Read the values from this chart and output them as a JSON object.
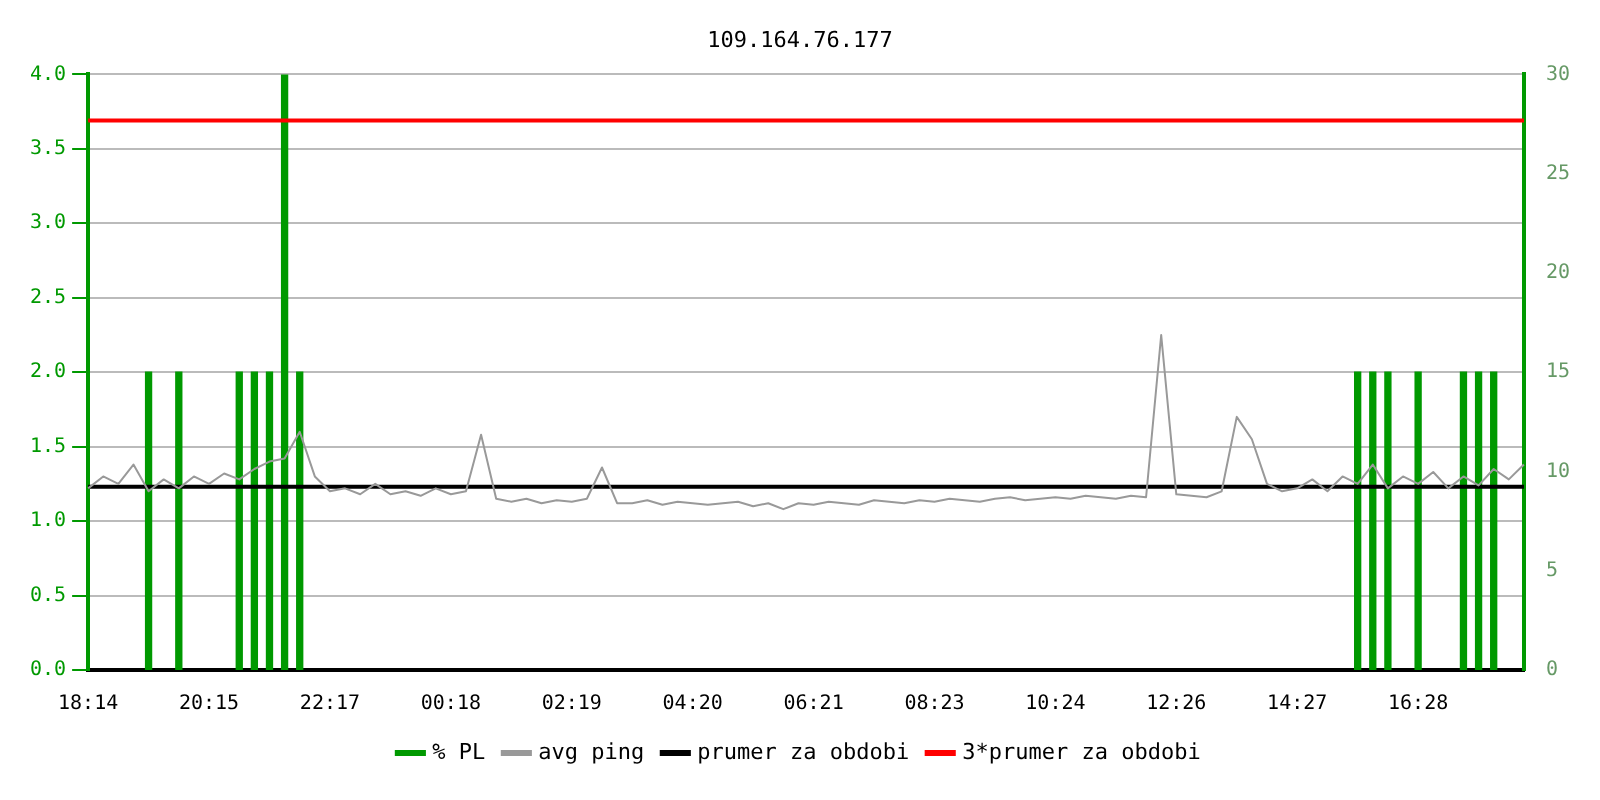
{
  "chart_data": {
    "type": "line",
    "title": "109.164.76.177",
    "categories": [
      "18:14",
      null,
      null,
      null,
      null,
      null,
      null,
      null,
      "20:15",
      null,
      null,
      null,
      null,
      null,
      null,
      null,
      "22:17",
      null,
      null,
      null,
      null,
      null,
      null,
      null,
      "00:18",
      null,
      null,
      null,
      null,
      null,
      null,
      null,
      "02:19",
      null,
      null,
      null,
      null,
      null,
      null,
      null,
      "04:20",
      null,
      null,
      null,
      null,
      null,
      null,
      null,
      "06:21",
      null,
      null,
      null,
      null,
      null,
      null,
      null,
      "08:23",
      null,
      null,
      null,
      null,
      null,
      null,
      null,
      "10:24",
      null,
      null,
      null,
      null,
      null,
      null,
      null,
      "12:26",
      null,
      null,
      null,
      null,
      null,
      null,
      null,
      "14:27",
      null,
      null,
      null,
      null,
      null,
      null,
      null,
      "16:28",
      null,
      null,
      null,
      null,
      null,
      null,
      null
    ],
    "ylim": [
      0,
      4
    ],
    "yticks": [
      {
        "value": 0,
        "label": "0.0"
      },
      {
        "value": 0.5,
        "label": "0.5"
      },
      {
        "value": 1,
        "label": "1.0"
      },
      {
        "value": 1.5,
        "label": "1.5"
      },
      {
        "value": 2,
        "label": "2.0"
      },
      {
        "value": 2.5,
        "label": "2.5"
      },
      {
        "value": 3,
        "label": "3.0"
      },
      {
        "value": 3.5,
        "label": "3.5"
      },
      {
        "value": 4,
        "label": "4.0"
      }
    ],
    "y2lim": [
      0,
      30
    ],
    "y2ticks": [
      0,
      5,
      10,
      15,
      20,
      25,
      30
    ],
    "grid": "y",
    "legend": "bottom",
    "marker": "none",
    "series": [
      {
        "name": "% PL",
        "type": "bar",
        "axis": "y2",
        "color": "#009900",
        "values": [
          null,
          null,
          null,
          null,
          15,
          null,
          15,
          null,
          null,
          null,
          15,
          15,
          15,
          30,
          15,
          null,
          null,
          null,
          null,
          null,
          null,
          null,
          null,
          null,
          null,
          null,
          null,
          null,
          null,
          null,
          null,
          null,
          null,
          null,
          null,
          null,
          null,
          null,
          null,
          null,
          null,
          null,
          null,
          null,
          null,
          null,
          null,
          null,
          null,
          null,
          null,
          null,
          null,
          null,
          null,
          null,
          null,
          null,
          null,
          null,
          null,
          null,
          null,
          null,
          null,
          null,
          null,
          null,
          null,
          null,
          null,
          null,
          null,
          null,
          null,
          null,
          null,
          null,
          null,
          null,
          null,
          null,
          null,
          null,
          15,
          15,
          15,
          null,
          15,
          null,
          null,
          15,
          15,
          15,
          null,
          null
        ]
      },
      {
        "name": "avg ping",
        "color": "#999999",
        "values": [
          1.22,
          1.3,
          1.25,
          1.38,
          1.2,
          1.28,
          1.22,
          1.3,
          1.25,
          1.32,
          1.28,
          1.35,
          1.4,
          1.42,
          1.6,
          1.3,
          1.2,
          1.22,
          1.18,
          1.25,
          1.18,
          1.2,
          1.17,
          1.22,
          1.18,
          1.2,
          1.58,
          1.15,
          1.13,
          1.15,
          1.12,
          1.14,
          1.13,
          1.15,
          1.36,
          1.12,
          1.12,
          1.14,
          1.11,
          1.13,
          1.12,
          1.11,
          1.12,
          1.13,
          1.1,
          1.12,
          1.08,
          1.12,
          1.11,
          1.13,
          1.12,
          1.11,
          1.14,
          1.13,
          1.12,
          1.14,
          1.13,
          1.15,
          1.14,
          1.13,
          1.15,
          1.16,
          1.14,
          1.15,
          1.16,
          1.15,
          1.17,
          1.16,
          1.15,
          1.17,
          1.16,
          2.25,
          1.18,
          1.17,
          1.16,
          1.2,
          1.7,
          1.55,
          1.25,
          1.2,
          1.22,
          1.28,
          1.2,
          1.3,
          1.25,
          1.38,
          1.22,
          1.3,
          1.25,
          1.33,
          1.22,
          1.3,
          1.24,
          1.35,
          1.28,
          1.38
        ]
      },
      {
        "name": "prumer za obdobi",
        "color": "#000000",
        "values": [
          1.23,
          1.23,
          1.23,
          1.23,
          1.23,
          1.23,
          1.23,
          1.23,
          1.23,
          1.23,
          1.23,
          1.23,
          1.23,
          1.23,
          1.23,
          1.23,
          1.23,
          1.23,
          1.23,
          1.23,
          1.23,
          1.23,
          1.23,
          1.23,
          1.23,
          1.23,
          1.23,
          1.23,
          1.23,
          1.23,
          1.23,
          1.23,
          1.23,
          1.23,
          1.23,
          1.23,
          1.23,
          1.23,
          1.23,
          1.23,
          1.23,
          1.23,
          1.23,
          1.23,
          1.23,
          1.23,
          1.23,
          1.23,
          1.23,
          1.23,
          1.23,
          1.23,
          1.23,
          1.23,
          1.23,
          1.23,
          1.23,
          1.23,
          1.23,
          1.23,
          1.23,
          1.23,
          1.23,
          1.23,
          1.23,
          1.23,
          1.23,
          1.23,
          1.23,
          1.23,
          1.23,
          1.23,
          1.23,
          1.23,
          1.23,
          1.23,
          1.23,
          1.23,
          1.23,
          1.23,
          1.23,
          1.23,
          1.23,
          1.23,
          1.23,
          1.23,
          1.23,
          1.23,
          1.23,
          1.23,
          1.23,
          1.23,
          1.23,
          1.23,
          1.23,
          1.23
        ]
      },
      {
        "name": "3*prumer za obdobi",
        "color": "#ff0000",
        "values": [
          3.69,
          3.69,
          3.69,
          3.69,
          3.69,
          3.69,
          3.69,
          3.69,
          3.69,
          3.69,
          3.69,
          3.69,
          3.69,
          3.69,
          3.69,
          3.69,
          3.69,
          3.69,
          3.69,
          3.69,
          3.69,
          3.69,
          3.69,
          3.69,
          3.69,
          3.69,
          3.69,
          3.69,
          3.69,
          3.69,
          3.69,
          3.69,
          3.69,
          3.69,
          3.69,
          3.69,
          3.69,
          3.69,
          3.69,
          3.69,
          3.69,
          3.69,
          3.69,
          3.69,
          3.69,
          3.69,
          3.69,
          3.69,
          3.69,
          3.69,
          3.69,
          3.69,
          3.69,
          3.69,
          3.69,
          3.69,
          3.69,
          3.69,
          3.69,
          3.69,
          3.69,
          3.69,
          3.69,
          3.69,
          3.69,
          3.69,
          3.69,
          3.69,
          3.69,
          3.69,
          3.69,
          3.69,
          3.69,
          3.69,
          3.69,
          3.69,
          3.69,
          3.69,
          3.69,
          3.69,
          3.69,
          3.69,
          3.69,
          3.69,
          3.69,
          3.69,
          3.69,
          3.69,
          3.69,
          3.69,
          3.69,
          3.69,
          3.69,
          3.69,
          3.69,
          3.69
        ]
      }
    ]
  }
}
